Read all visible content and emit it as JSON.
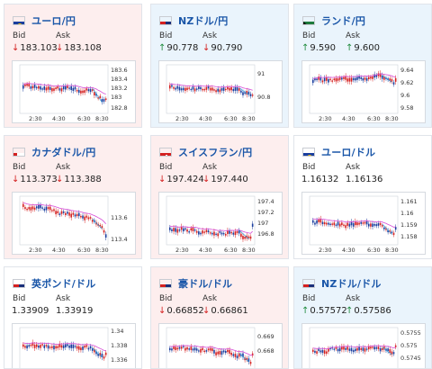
{
  "labels": {
    "bid": "Bid",
    "ask": "Ask"
  },
  "colors": {
    "card_down": "#fdeeee",
    "card_up": "#eaf4fc",
    "title": "#1a56a8",
    "arrow_down": "#d42020",
    "arrow_up": "#1e8a3c",
    "candle_up": "#d42020",
    "candle_down": "#1a3e9e",
    "ma_line": "#d64bd6",
    "last_line": "#2ea3e0"
  },
  "pairs": [
    {
      "title": "ユーロ/円",
      "flag": "eu-jp-flag-icon",
      "bid": "183.103",
      "ask": "183.108",
      "bid_dir": "down",
      "ask_dir": "down",
      "card": "down",
      "yticks": [
        "183.6",
        "183.4",
        "183.2",
        "183",
        "182.8"
      ],
      "xticks": [
        "2:30",
        "4:30",
        "6:30",
        "8:30"
      ]
    },
    {
      "title": "NZドル/円",
      "flag": "nz-jp-flag-icon",
      "bid": "90.778",
      "ask": "90.790",
      "bid_dir": "up",
      "ask_dir": "down",
      "card": "up",
      "yticks": [
        "91",
        "90.8"
      ],
      "xticks": [
        "2:30",
        "4:30",
        "6:30",
        "8:30"
      ]
    },
    {
      "title": "ランド/円",
      "flag": "za-jp-flag-icon",
      "bid": "9.590",
      "ask": "9.600",
      "bid_dir": "up",
      "ask_dir": "up",
      "card": "up",
      "yticks": [
        "9.64",
        "9.62",
        "9.6",
        "9.58"
      ],
      "xticks": [
        "2:30",
        "4:30",
        "6:30",
        "8:30"
      ]
    },
    {
      "title": "カナダドル/円",
      "flag": "ca-jp-flag-icon",
      "bid": "113.373",
      "ask": "113.388",
      "bid_dir": "down",
      "ask_dir": "down",
      "card": "down",
      "yticks": [
        "113.6",
        "113.4"
      ],
      "xticks": [
        "2:30",
        "4:30",
        "6:30",
        "8:30"
      ]
    },
    {
      "title": "スイスフラン/円",
      "flag": "ch-jp-flag-icon",
      "bid": "197.424",
      "ask": "197.440",
      "bid_dir": "down",
      "ask_dir": "down",
      "card": "down",
      "yticks": [
        "197.4",
        "197.2",
        "197",
        "196.8"
      ],
      "xticks": [
        "2:30",
        "4:30",
        "6:30",
        "8:30"
      ]
    },
    {
      "title": "ユーロ/ドル",
      "flag": "eu-us-flag-icon",
      "bid": "1.16132",
      "ask": "1.16136",
      "bid_dir": "none",
      "ask_dir": "none",
      "card": "flat",
      "yticks": [
        "1.161",
        "1.16",
        "1.159",
        "1.158"
      ],
      "xticks": [
        "2:30",
        "4:30",
        "6:30",
        "8:30"
      ]
    },
    {
      "title": "英ポンド/ドル",
      "flag": "gb-us-flag-icon",
      "bid": "1.33909",
      "ask": "1.33919",
      "bid_dir": "none",
      "ask_dir": "none",
      "card": "flat",
      "yticks": [
        "1.34",
        "1.338",
        "1.336"
      ],
      "xticks": []
    },
    {
      "title": "豪ドル/ドル",
      "flag": "au-us-flag-icon",
      "bid": "0.66852",
      "ask": "0.66861",
      "bid_dir": "down",
      "ask_dir": "down",
      "card": "down",
      "yticks": [
        "0.669",
        "0.668"
      ],
      "xticks": []
    },
    {
      "title": "NZドル/ドル",
      "flag": "nz-us-flag-icon",
      "bid": "0.57572",
      "ask": "0.57586",
      "bid_dir": "up",
      "ask_dir": "up",
      "card": "up",
      "yticks": [
        "0.5755",
        "0.575",
        "0.5745"
      ],
      "xticks": []
    }
  ]
}
